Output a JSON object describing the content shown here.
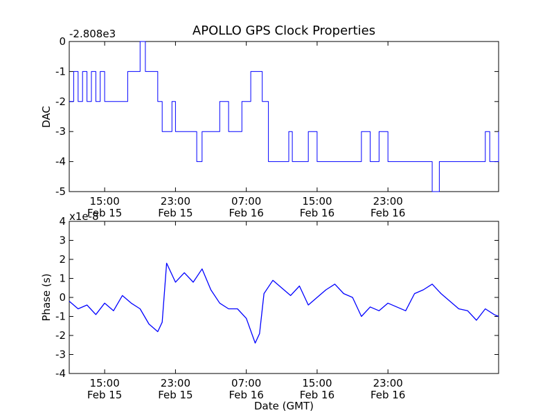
{
  "chart_data": [
    {
      "type": "line",
      "title": "APOLLO GPS Clock Properties",
      "ylabel": "DAC",
      "xlabel": "",
      "offset_text": "-2.808e3",
      "ylim": [
        -5,
        0
      ],
      "yticks": [
        "0",
        "-1",
        "-2",
        "-3",
        "-4",
        "-5"
      ],
      "xlim_hours": [
        11.0,
        59.5
      ],
      "xticks": [
        {
          "line1": "15:00",
          "line2": "Feb 15"
        },
        {
          "line1": "23:00",
          "line2": "Feb 15"
        },
        {
          "line1": "07:00",
          "line2": "Feb 16"
        },
        {
          "line1": "15:00",
          "line2": "Feb 16"
        },
        {
          "line1": "23:00",
          "line2": "Feb 16"
        }
      ],
      "color": "#0000ff",
      "series": [
        {
          "x": [
            11.0,
            11.5,
            12.0,
            12.5,
            13.0,
            13.5,
            14.0,
            14.5,
            15.0,
            16.0,
            17.0,
            17.6,
            18.0,
            18.3,
            19.0,
            19.6,
            20.0,
            20.5,
            21.0,
            21.5,
            22.0,
            22.6,
            23.0,
            24.0,
            25.0,
            25.4,
            26.0,
            26.8,
            27.0,
            27.5,
            28.0,
            29.0,
            30.0,
            30.5,
            31.0,
            31.5,
            32.0,
            32.8,
            33.5,
            34.0,
            35.0,
            35.8,
            36.2,
            37.0,
            38.0,
            39.0,
            40.0,
            41.0,
            42.0,
            43.0,
            44.0,
            45.0,
            46.0,
            47.0,
            48.0,
            49.0,
            50.0,
            51.0,
            51.4,
            52.0,
            52.8,
            53.3,
            54.0,
            55.0,
            56.0,
            57.0,
            58.0,
            58.5,
            59.0,
            59.5
          ],
          "y": [
            -2,
            -1,
            -2,
            -1,
            -2,
            -1,
            -2,
            -1,
            -2,
            -2,
            -2,
            -1,
            -1,
            -1,
            0,
            -1,
            -1,
            -1,
            -2,
            -3,
            -3,
            -2,
            -3,
            -3,
            -3,
            -4,
            -3,
            -3,
            -3,
            -3,
            -2,
            -3,
            -3,
            -2,
            -2,
            -1,
            -1,
            -2,
            -4,
            -4,
            -4,
            -3,
            -4,
            -4,
            -3,
            -4,
            -4,
            -4,
            -4,
            -4,
            -3,
            -4,
            -3,
            -4,
            -4,
            -4,
            -4,
            -4,
            -4,
            -5,
            -4,
            -4,
            -4,
            -4,
            -4,
            -4,
            -3,
            -4,
            -4,
            -3
          ]
        }
      ]
    },
    {
      "type": "line",
      "title": "",
      "ylabel": "Phase (s)",
      "xlabel": "Date (GMT)",
      "offset_text": "x1e-8",
      "ylim": [
        -4,
        4
      ],
      "yticks": [
        "4",
        "3",
        "2",
        "1",
        "0",
        "-1",
        "-2",
        "-3",
        "-4"
      ],
      "xlim_hours": [
        11.0,
        59.5
      ],
      "xticks": [
        {
          "line1": "15:00",
          "line2": "Feb 15"
        },
        {
          "line1": "23:00",
          "line2": "Feb 15"
        },
        {
          "line1": "07:00",
          "line2": "Feb 16"
        },
        {
          "line1": "15:00",
          "line2": "Feb 16"
        },
        {
          "line1": "23:00",
          "line2": "Feb 16"
        }
      ],
      "color": "#0000ff",
      "series": [
        {
          "x": [
            11.0,
            12.0,
            13.0,
            14.0,
            15.0,
            16.0,
            17.0,
            18.0,
            19.0,
            20.0,
            21.0,
            21.5,
            22.0,
            23.0,
            24.0,
            25.0,
            26.0,
            27.0,
            28.0,
            29.0,
            30.0,
            31.0,
            32.0,
            32.5,
            33.0,
            34.0,
            35.0,
            36.0,
            37.0,
            38.0,
            39.0,
            40.0,
            41.0,
            42.0,
            43.0,
            44.0,
            45.0,
            46.0,
            47.0,
            48.0,
            49.0,
            50.0,
            51.0,
            52.0,
            53.0,
            54.0,
            55.0,
            56.0,
            57.0,
            58.0,
            59.0,
            59.5
          ],
          "y": [
            -0.2,
            -0.6,
            -0.4,
            -0.9,
            -0.3,
            -0.7,
            0.1,
            -0.3,
            -0.6,
            -1.4,
            -1.8,
            -1.3,
            1.8,
            0.8,
            1.3,
            0.8,
            1.5,
            0.4,
            -0.3,
            -0.6,
            -0.6,
            -1.1,
            -2.4,
            -1.9,
            0.2,
            0.9,
            0.5,
            0.1,
            0.6,
            -0.4,
            0.0,
            0.4,
            0.7,
            0.2,
            0.0,
            -1.0,
            -0.5,
            -0.7,
            -0.3,
            -0.5,
            -0.7,
            0.2,
            0.4,
            0.7,
            0.2,
            -0.2,
            -0.6,
            -0.7,
            -1.2,
            -0.6,
            -0.9,
            -1.0
          ]
        }
      ]
    }
  ]
}
